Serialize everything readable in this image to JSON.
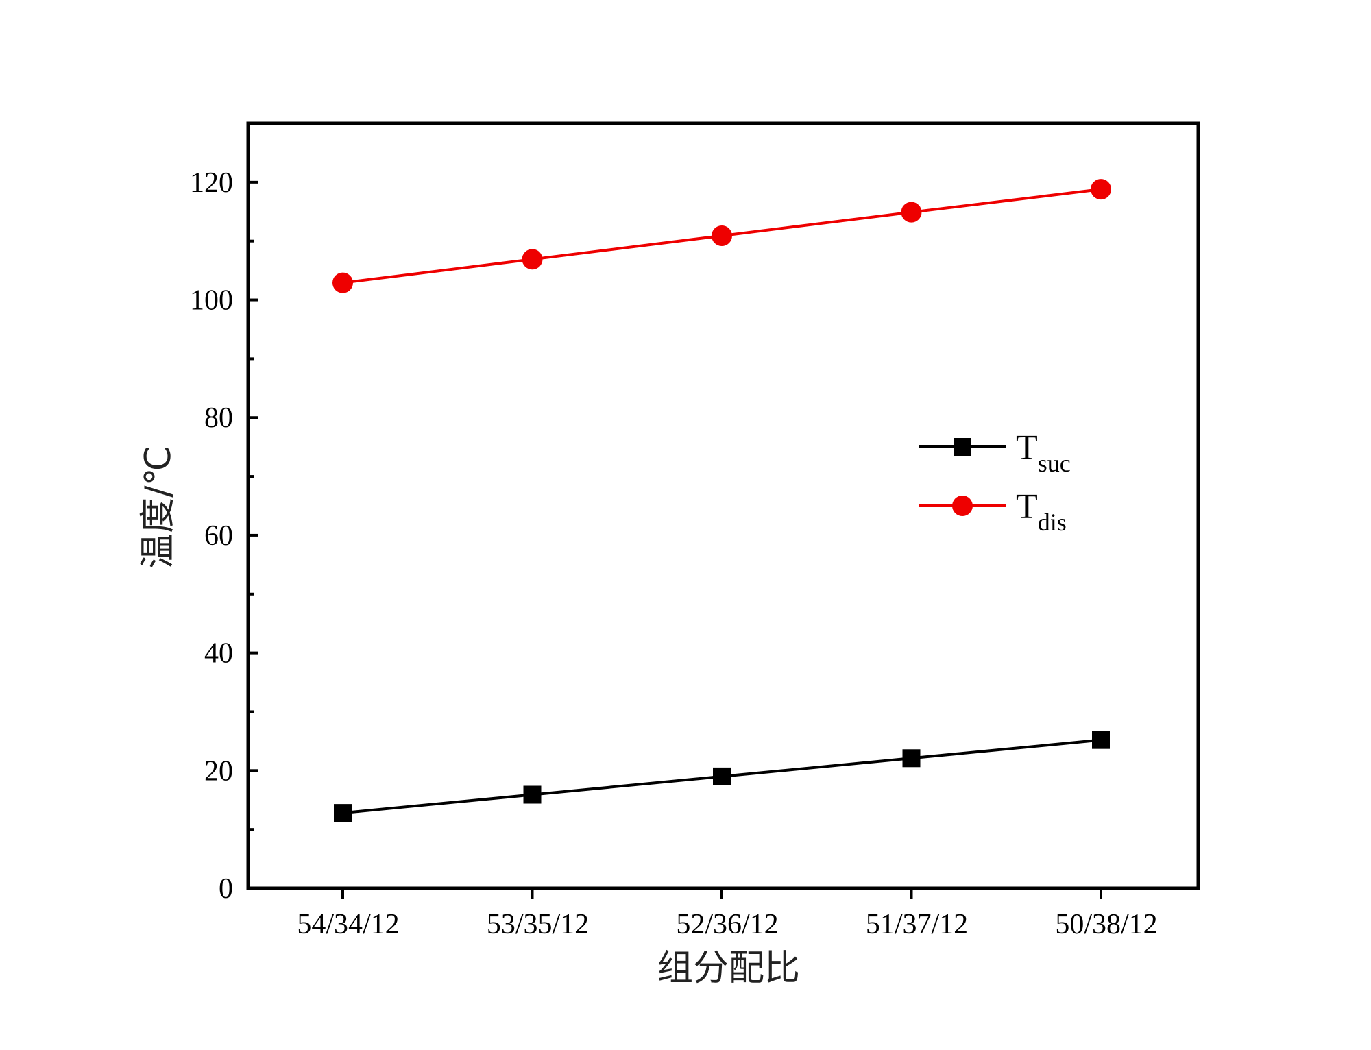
{
  "chart_data": {
    "type": "line",
    "title": "",
    "xlabel": "组分配比",
    "ylabel": "温度/℃",
    "categories": [
      "54/34/12",
      "53/35/12",
      "52/36/12",
      "51/37/12",
      "50/38/12"
    ],
    "ylim": [
      0,
      130
    ],
    "yticks": [
      0,
      20,
      40,
      60,
      80,
      100,
      120
    ],
    "grid": false,
    "legend_position": "right",
    "series": [
      {
        "name": "T",
        "subscript": "suc",
        "marker": "square",
        "color": "#000000",
        "values": [
          12.8,
          15.9,
          19.0,
          22.1,
          25.2
        ]
      },
      {
        "name": "T",
        "subscript": "dis",
        "marker": "circle",
        "color": "#ee0000",
        "values": [
          102.9,
          106.9,
          110.9,
          114.9,
          118.8
        ]
      }
    ]
  }
}
